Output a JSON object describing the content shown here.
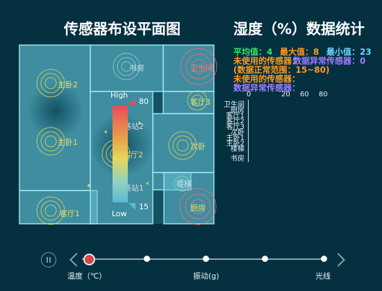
{
  "titles": {
    "floorplan": "传感器布设平面图",
    "stats": "湿度（%）数据统计"
  },
  "rooms": {
    "study": "书房",
    "bathroom": "卫生间",
    "master2": "主卧2",
    "master1": "主卧1",
    "living3": "客厅3",
    "base2": "基站2",
    "living2": "客厅2",
    "second": "次卧",
    "base1": "基站1",
    "stairs": "楼梯",
    "living1": "客厅1",
    "kitchen": "厨房"
  },
  "visual_map": {
    "high_label": "High",
    "low_label": "Low",
    "max": "80",
    "min": "15",
    "colors": [
      "#e94b58",
      "#e6a34a",
      "#e7d75a",
      "#8fd0c4",
      "#5cb8d1"
    ]
  },
  "stats": {
    "avg": "平均值：4",
    "max": "最大值：8",
    "min": "最小值：23",
    "unused_a": "未使用的传感器：",
    "abnormal_a": "数据异常传感器：0",
    "range": "(数据正常范围：15~80)",
    "unused_b": "未使用的传感器：",
    "abnormal_b": "数据异常传感器："
  },
  "mini_chart": {
    "x_ticks": [
      "0",
      "20",
      "60",
      "80"
    ],
    "categories": [
      "卫生间",
      "厨房",
      "客厅1",
      "客厅2",
      "客厅3",
      "次卧",
      "主卧1",
      "主卧2",
      "楼梯",
      "书房"
    ]
  },
  "timeline": {
    "items": [
      "温度（℃）",
      "振动(g)",
      "光线"
    ]
  }
}
